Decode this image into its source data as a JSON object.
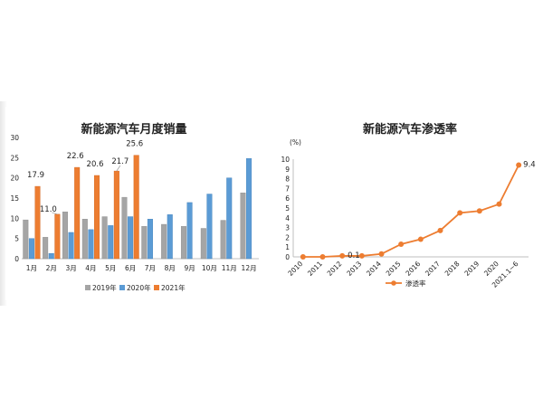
{
  "chart_data": [
    {
      "type": "bar",
      "title": "新能源汽车月度销量",
      "categories": [
        "1月",
        "2月",
        "3月",
        "4月",
        "5月",
        "6月",
        "7月",
        "8月",
        "9月",
        "10月",
        "11月",
        "12月"
      ],
      "ylim": [
        0,
        30
      ],
      "yticks": [
        0,
        5,
        10,
        15,
        20,
        25,
        30
      ],
      "grid": false,
      "legend_position": "bottom",
      "series": [
        {
          "name": "2019年",
          "color": "#a5a5a5",
          "values": [
            9.6,
            5.3,
            11.6,
            9.8,
            10.4,
            15.2,
            8.0,
            8.5,
            8.0,
            7.5,
            9.5,
            16.3
          ]
        },
        {
          "name": "2020年",
          "color": "#5b9bd5",
          "values": [
            5.0,
            1.3,
            6.5,
            7.2,
            8.2,
            10.4,
            9.8,
            10.9,
            13.9,
            16.0,
            20.0,
            24.8
          ]
        },
        {
          "name": "2021年",
          "color": "#ed7d31",
          "values": [
            17.9,
            11.0,
            22.6,
            20.6,
            21.7,
            25.6,
            null,
            null,
            null,
            null,
            null,
            null
          ]
        }
      ],
      "data_labels": [
        {
          "series": 2,
          "index": 0,
          "text": "17.9"
        },
        {
          "series": 2,
          "index": 1,
          "text": "11.0"
        },
        {
          "series": 2,
          "index": 2,
          "text": "22.6"
        },
        {
          "series": 2,
          "index": 3,
          "text": "20.6"
        },
        {
          "series": 2,
          "index": 4,
          "text": "21.7"
        },
        {
          "series": 2,
          "index": 5,
          "text": "25.6"
        }
      ]
    },
    {
      "type": "line",
      "title": "新能源汽车渗透率",
      "ylabel": "(%)",
      "categories": [
        "2010",
        "2011",
        "2012",
        "2013",
        "2014",
        "2015",
        "2016",
        "2017",
        "2018",
        "2019",
        "2020",
        "2021.1~6"
      ],
      "values": [
        0.0,
        0.0,
        0.1,
        0.1,
        0.3,
        1.3,
        1.8,
        2.7,
        4.5,
        4.7,
        5.4,
        9.4
      ],
      "ylim": [
        0,
        10
      ],
      "yticks": [
        0,
        1,
        2,
        3,
        4,
        5,
        6,
        7,
        8,
        9,
        10
      ],
      "grid": false,
      "legend_position": "bottom",
      "series_name": "渗透率",
      "color": "#ed7d31",
      "data_labels": [
        {
          "index": 2,
          "text": "0.1"
        },
        {
          "index": 11,
          "text": "9.4"
        }
      ]
    }
  ]
}
